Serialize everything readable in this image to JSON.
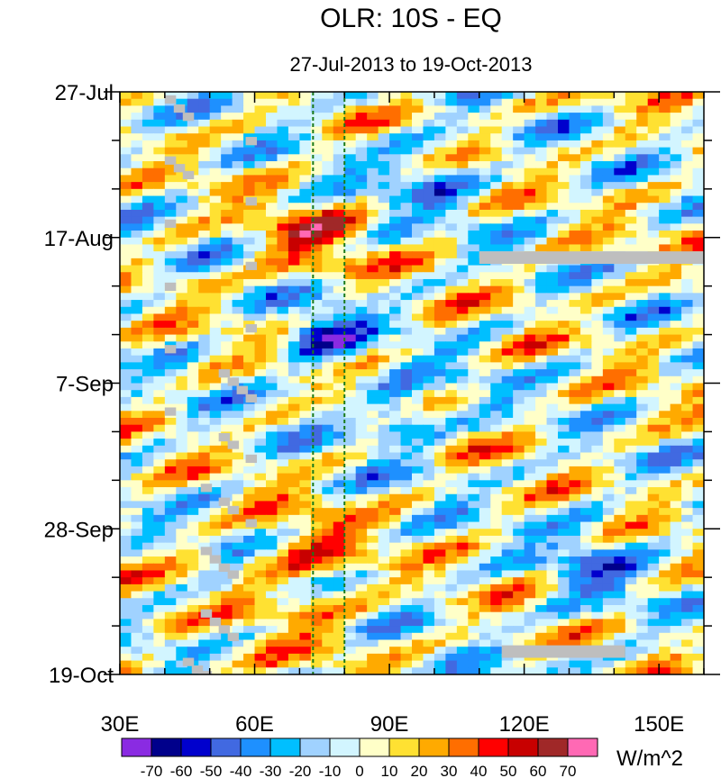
{
  "chart_data": {
    "type": "heatmap",
    "title": "OLR: 10S - EQ",
    "subtitle": "27-Jul-2013 to 19-Oct-2013",
    "x_axis": {
      "range": [
        30,
        160
      ],
      "ticks": [
        30,
        60,
        90,
        120,
        150
      ],
      "tick_labels": [
        "30E",
        "60E",
        "90E",
        "120E",
        "150E"
      ],
      "minor_step": 10
    },
    "y_axis": {
      "range_days": [
        0,
        84
      ],
      "ticks_days": [
        0,
        21,
        42,
        63,
        84
      ],
      "tick_labels": [
        "27-Jul",
        "17-Aug",
        "7-Sep",
        "28-Sep",
        "19-Oct"
      ],
      "minor_step_days": 7
    },
    "reference_lines_lon": [
      73,
      80
    ],
    "colorbar": {
      "units": "W/m^2",
      "levels": [
        -70,
        -60,
        -50,
        -40,
        -30,
        -20,
        -10,
        0,
        10,
        20,
        30,
        40,
        50,
        60,
        70
      ],
      "level_labels": [
        "-70",
        "-60",
        "-50",
        "-40",
        "-30",
        "-20",
        "-10",
        "0",
        "10",
        "20",
        "30",
        "40",
        "50",
        "60",
        "70"
      ],
      "colors": [
        "#8a2be2",
        "#00008b",
        "#0000cd",
        "#4169e1",
        "#1e90ff",
        "#00bfff",
        "#a0d2ff",
        "#d2f5ff",
        "#ffffc8",
        "#ffe132",
        "#ffaa00",
        "#ff6e00",
        "#ff0000",
        "#c80000",
        "#a02828",
        "#ff69b4"
      ]
    },
    "field": {
      "description_free": "anomaly field (W/m^2) sampled on 2.5-degree longitude x 1-day grid",
      "lon_step": 2.5,
      "day_step": 1
    },
    "missing_color": "#bebebe"
  }
}
